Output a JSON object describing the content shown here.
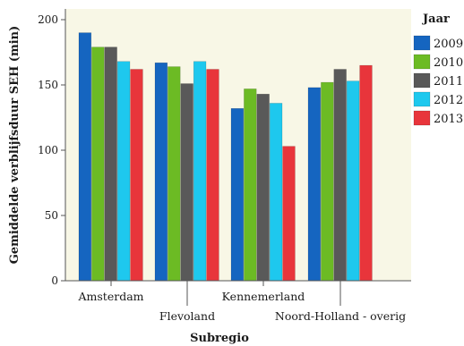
{
  "chart_data": {
    "type": "bar",
    "xlabel": "Subregio",
    "ylabel": "Gemiddelde verblijfsduur SEH (min)",
    "ylim": [
      0,
      200
    ],
    "yticks": [
      0,
      50,
      100,
      150,
      200
    ],
    "grid": false,
    "legend_title": "Jaar",
    "legend_position": "right",
    "categories": [
      "Amsterdam",
      "Flevoland",
      "Kennemerland",
      "Noord-Holland - overig"
    ],
    "series": [
      {
        "name": "2009",
        "color": "#1565c0",
        "values": [
          190,
          167,
          132,
          148
        ]
      },
      {
        "name": "2010",
        "color": "#6cbb24",
        "values": [
          179,
          164,
          147,
          152
        ]
      },
      {
        "name": "2011",
        "color": "#595959",
        "values": [
          179,
          151,
          143,
          162
        ]
      },
      {
        "name": "2012",
        "color": "#1ec8ee",
        "values": [
          168,
          168,
          136,
          153
        ]
      },
      {
        "name": "2013",
        "color": "#e8353b",
        "values": [
          162,
          162,
          103,
          165
        ]
      }
    ],
    "plot_background": "#f8f7e6"
  }
}
